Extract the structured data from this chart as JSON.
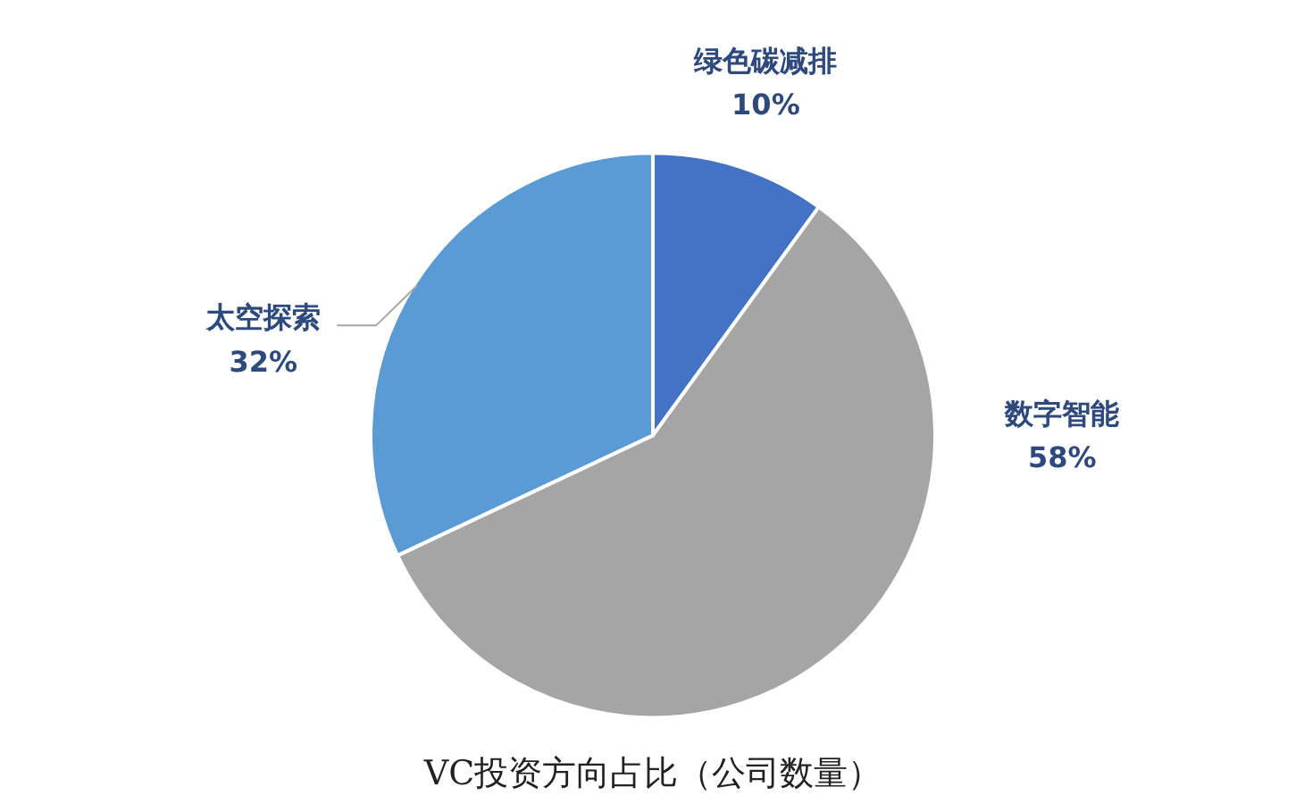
{
  "chart_data": {
    "type": "pie",
    "title": "VC投资方向占比（公司数量）",
    "categories": [
      "绿色碳减排",
      "数字智能",
      "太空探索"
    ],
    "values": [
      10,
      58,
      32
    ],
    "value_labels": [
      "10%",
      "58%",
      "32%"
    ],
    "colors": [
      "#4472c4",
      "#a5a5a5",
      "#5b9bd5"
    ]
  }
}
